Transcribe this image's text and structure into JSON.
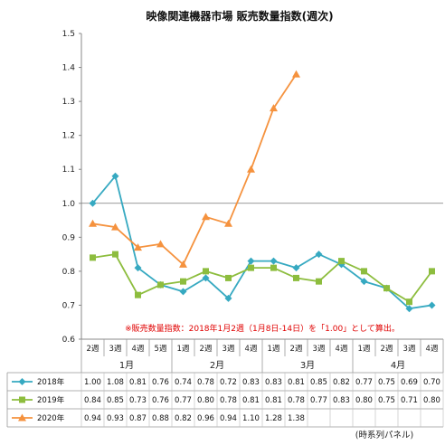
{
  "chart_data": {
    "type": "line",
    "title": "映像関連機器市場 販売数量指数(週次)",
    "note": "※販売数量指数：2018年1月2週（1月8日-14日）を「1.00」として算出。",
    "source": "(時系列パネル)",
    "ylim": [
      0.6,
      1.5
    ],
    "yticks": [
      "0.6",
      "0.7",
      "0.8",
      "0.9",
      "1.0",
      "1.1",
      "1.2",
      "1.3",
      "1.4",
      "1.5"
    ],
    "reference_line": 1.0,
    "weeks": [
      "2週",
      "3週",
      "4週",
      "5週",
      "1週",
      "2週",
      "3週",
      "4週",
      "1週",
      "2週",
      "3週",
      "4週",
      "1週",
      "2週",
      "3週",
      "4週"
    ],
    "months": [
      {
        "label": "1月",
        "start": 0,
        "end": 3
      },
      {
        "label": "2月",
        "start": 4,
        "end": 7
      },
      {
        "label": "3月",
        "start": 8,
        "end": 11
      },
      {
        "label": "4月",
        "start": 12,
        "end": 15
      }
    ],
    "series": [
      {
        "name": "2018年",
        "color": "#36a9c1",
        "marker": "diamond",
        "values": [
          1.0,
          1.08,
          0.81,
          0.76,
          0.74,
          0.78,
          0.72,
          0.83,
          0.83,
          0.81,
          0.85,
          0.82,
          0.77,
          0.75,
          0.69,
          0.7
        ],
        "labels": [
          "1.00",
          "1.08",
          "0.81",
          "0.76",
          "0.74",
          "0.78",
          "0.72",
          "0.83",
          "0.83",
          "0.81",
          "0.85",
          "0.82",
          "0.77",
          "0.75",
          "0.69",
          "0.70"
        ]
      },
      {
        "name": "2019年",
        "color": "#8dbd3e",
        "marker": "square",
        "values": [
          0.84,
          0.85,
          0.73,
          0.76,
          0.77,
          0.8,
          0.78,
          0.81,
          0.81,
          0.78,
          0.77,
          0.83,
          0.8,
          0.75,
          0.71,
          0.8
        ],
        "labels": [
          "0.84",
          "0.85",
          "0.73",
          "0.76",
          "0.77",
          "0.80",
          "0.78",
          "0.81",
          "0.81",
          "0.78",
          "0.77",
          "0.83",
          "0.80",
          "0.75",
          "0.71",
          "0.80"
        ]
      },
      {
        "name": "2020年",
        "color": "#f5923e",
        "marker": "triangle",
        "values": [
          0.94,
          0.93,
          0.87,
          0.88,
          0.82,
          0.96,
          0.94,
          1.1,
          1.28,
          1.38,
          null,
          null,
          null,
          null,
          null,
          null
        ],
        "labels": [
          "0.94",
          "0.93",
          "0.87",
          "0.88",
          "0.82",
          "0.96",
          "0.94",
          "1.10",
          "1.28",
          "1.38",
          "",
          "",
          "",
          "",
          "",
          ""
        ]
      }
    ]
  }
}
